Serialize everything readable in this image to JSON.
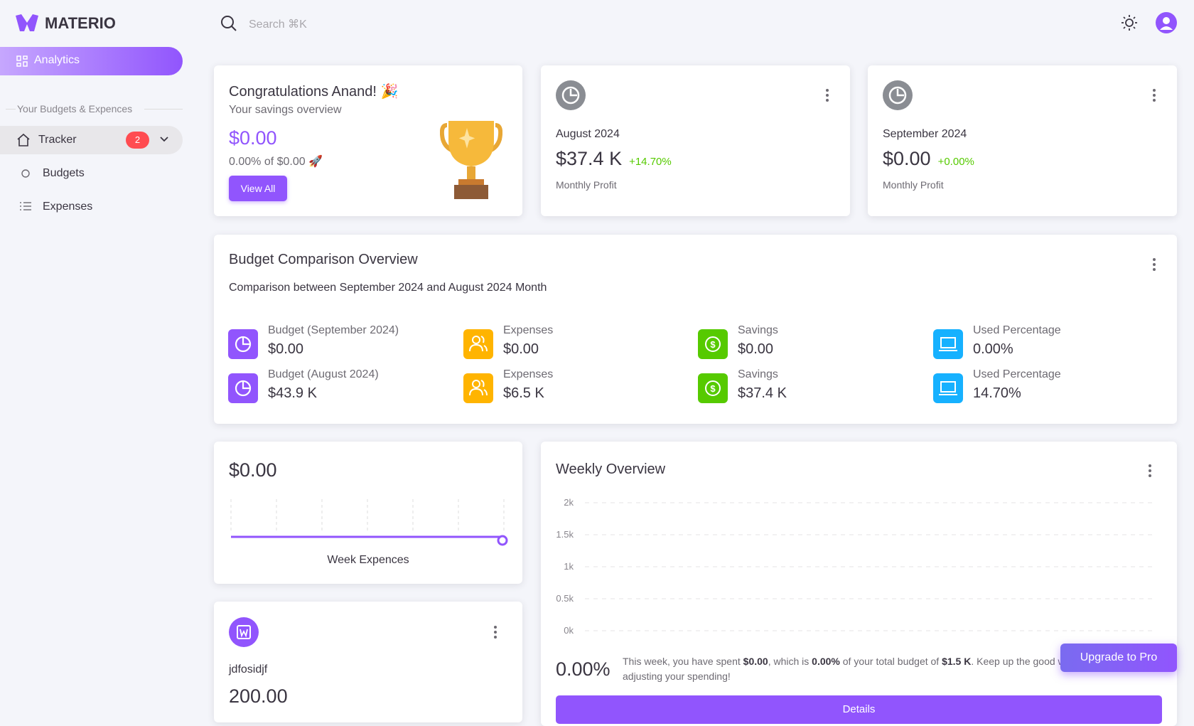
{
  "brand": "MATERIO",
  "search_placeholder": "Search ⌘K",
  "sidebar": {
    "active": "Analytics",
    "section": "Your Budgets & Expences",
    "items": [
      {
        "label": "Tracker",
        "badge": "2"
      },
      {
        "label": "Budgets"
      },
      {
        "label": "Expenses"
      }
    ]
  },
  "congrats": {
    "title": "Congratulations Anand! 🎉",
    "subtitle": "Your savings overview",
    "amount": "$0.00",
    "progress": "0.00% of $0.00 🚀",
    "button": "View All"
  },
  "profit_cards": [
    {
      "month": "August 2024",
      "value": "$37.4 K",
      "change": "+14.70%",
      "label": "Monthly Profit"
    },
    {
      "month": "September 2024",
      "value": "$0.00",
      "change": "+0.00%",
      "label": "Monthly Profit"
    }
  ],
  "budget_comparison": {
    "title": "Budget Comparison Overview",
    "subtitle": "Comparison between September 2024 and August 2024 Month",
    "rows": [
      [
        {
          "label": "Budget (September 2024)",
          "value": "$0.00"
        },
        {
          "label": "Expenses",
          "value": "$0.00"
        },
        {
          "label": "Savings",
          "value": "$0.00"
        },
        {
          "label": "Used Percentage",
          "value": "0.00%"
        }
      ],
      [
        {
          "label": "Budget (August 2024)",
          "value": "$43.9 K"
        },
        {
          "label": "Expenses",
          "value": "$6.5 K"
        },
        {
          "label": "Savings",
          "value": "$37.4 K"
        },
        {
          "label": "Used Percentage",
          "value": "14.70%"
        }
      ]
    ]
  },
  "week_expenses": {
    "amount": "$0.00",
    "label": "Week Expences"
  },
  "weekly_overview": {
    "title": "Weekly Overview",
    "ylim": [
      0,
      2000
    ],
    "yticks": [
      {
        "value": 2000,
        "label": "2k"
      },
      {
        "value": 1500,
        "label": "1.5k"
      },
      {
        "value": 1000,
        "label": "1k"
      },
      {
        "value": 500,
        "label": "0.5k"
      },
      {
        "value": 0,
        "label": "0k"
      }
    ],
    "percent": "0.00%",
    "text": [
      "This week, you have spent ",
      "$0.00",
      ", which is ",
      "0.00%",
      " of your total budget of ",
      "$1.5 K",
      ". Keep up the good work by adjusting your spending!"
    ],
    "button": "Details"
  },
  "item_card": {
    "name": "jdfosidjf",
    "amount": "200.00"
  },
  "upgrade": "Upgrade to Pro"
}
